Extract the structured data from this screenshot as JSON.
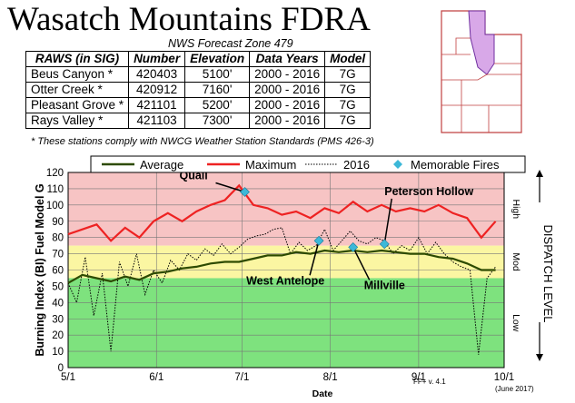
{
  "header": {
    "title": "Wasatch Mountains FDRA",
    "subtitle": "NWS Forecast Zone 479",
    "footnote": "* These stations comply with NWCG Weather Station Standards (PMS 426-3)"
  },
  "raws_table": {
    "columns": [
      "RAWS (in SIG)",
      "Number",
      "Elevation",
      "Data Years",
      "Model"
    ],
    "rows": [
      [
        "Beus Canyon *",
        "420403",
        "5100'",
        "2000 - 2016",
        "7G"
      ],
      [
        "Otter Creek *",
        "420912",
        "7160'",
        "2000 - 2016",
        "7G"
      ],
      [
        "Pleasant Grove *",
        "421101",
        "5200'",
        "2000 - 2016",
        "7G"
      ],
      [
        "Rays Valley *",
        "421103",
        "7300'",
        "2000 - 2016",
        "7G"
      ]
    ]
  },
  "colors": {
    "average": "#2d4a00",
    "maximum": "#ee2222",
    "year2016": "#000000",
    "fires": "#3cb8d8",
    "high_band": "#f7c4c4",
    "mod_band": "#fbf6a2",
    "low_band": "#7ee27e"
  },
  "chart_data": {
    "type": "line",
    "xlabel": "Date",
    "ylabel": "Burning Index (BI) Fuel Model G",
    "ylim": [
      0,
      120
    ],
    "yticks": [
      0,
      10,
      20,
      30,
      40,
      50,
      60,
      70,
      80,
      90,
      100,
      110,
      120
    ],
    "xticks": [
      "5/1",
      "6/1",
      "7/1",
      "8/1",
      "9/1",
      "10/1"
    ],
    "bands": [
      {
        "label": "High",
        "from": 75,
        "to": 120
      },
      {
        "label": "Mod",
        "from": 55,
        "to": 75
      },
      {
        "label": "Low",
        "from": 0,
        "to": 55
      }
    ],
    "side_label": "DISPATCH   LEVEL",
    "legend": [
      "Average",
      "Maximum",
      "2016",
      "Memorable Fires"
    ],
    "legend_position": "top",
    "series": [
      {
        "name": "Average",
        "x": [
          "5/1",
          "5/6",
          "5/11",
          "5/16",
          "5/21",
          "5/26",
          "5/31",
          "6/5",
          "6/10",
          "6/15",
          "6/20",
          "6/25",
          "6/30",
          "7/5",
          "7/10",
          "7/15",
          "7/20",
          "7/25",
          "7/30",
          "8/4",
          "8/9",
          "8/14",
          "8/19",
          "8/24",
          "8/29",
          "9/3",
          "9/8",
          "9/13",
          "9/18",
          "9/23",
          "9/28"
        ],
        "values": [
          52,
          57,
          55,
          53,
          56,
          54,
          58,
          59,
          61,
          62,
          64,
          65,
          65,
          67,
          69,
          69,
          71,
          70,
          72,
          71,
          72,
          71,
          72,
          71,
          70,
          70,
          68,
          67,
          64,
          60,
          60
        ]
      },
      {
        "name": "Maximum",
        "x": [
          "5/1",
          "5/6",
          "5/11",
          "5/16",
          "5/21",
          "5/26",
          "5/31",
          "6/5",
          "6/10",
          "6/15",
          "6/20",
          "6/25",
          "6/30",
          "7/5",
          "7/10",
          "7/15",
          "7/20",
          "7/25",
          "7/30",
          "8/4",
          "8/9",
          "8/14",
          "8/19",
          "8/24",
          "8/29",
          "9/3",
          "9/8",
          "9/13",
          "9/18",
          "9/23",
          "9/28"
        ],
        "values": [
          82,
          85,
          88,
          78,
          86,
          80,
          90,
          95,
          90,
          96,
          100,
          103,
          112,
          100,
          98,
          94,
          96,
          92,
          98,
          95,
          102,
          96,
          100,
          96,
          98,
          96,
          100,
          95,
          92,
          80,
          90
        ]
      },
      {
        "name": "2016",
        "x": [
          "5/1",
          "5/4",
          "5/7",
          "5/10",
          "5/13",
          "5/16",
          "5/19",
          "5/22",
          "5/25",
          "5/28",
          "5/31",
          "6/3",
          "6/6",
          "6/9",
          "6/12",
          "6/15",
          "6/18",
          "6/21",
          "6/24",
          "6/27",
          "6/30",
          "7/3",
          "7/6",
          "7/9",
          "7/12",
          "7/15",
          "7/18",
          "7/21",
          "7/24",
          "7/27",
          "7/30",
          "8/2",
          "8/5",
          "8/8",
          "8/11",
          "8/14",
          "8/17",
          "8/20",
          "8/23",
          "8/26",
          "8/29",
          "9/1",
          "9/4",
          "9/7",
          "9/10",
          "9/13",
          "9/16",
          "9/19",
          "9/22",
          "9/25",
          "9/28"
        ],
        "values": [
          52,
          40,
          68,
          32,
          58,
          10,
          65,
          50,
          70,
          45,
          60,
          52,
          66,
          60,
          70,
          66,
          73,
          69,
          76,
          70,
          74,
          79,
          81,
          82,
          85,
          86,
          70,
          77,
          72,
          75,
          85,
          72,
          78,
          84,
          78,
          76,
          80,
          78,
          70,
          75,
          72,
          80,
          70,
          77,
          70,
          65,
          62,
          60,
          8,
          55,
          62
        ]
      }
    ],
    "memorable_fires": [
      {
        "name": "Quail",
        "date": "7/2",
        "value": 108
      },
      {
        "name": "West Antelope",
        "date": "7/28",
        "value": 78
      },
      {
        "name": "Millville",
        "date": "8/9",
        "value": 74
      },
      {
        "name": "Peterson Hollow",
        "date": "8/20",
        "value": 76
      }
    ],
    "notes": {
      "version": "FF+  v. 4.1",
      "date": "(June 2017)"
    }
  }
}
